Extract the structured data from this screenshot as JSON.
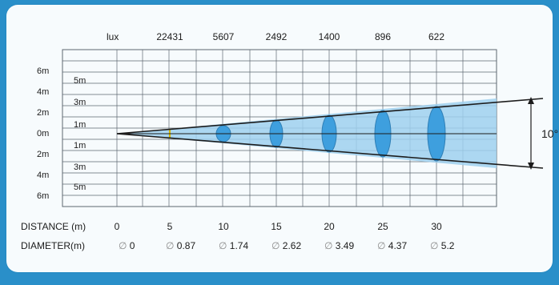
{
  "lux_label": "lux",
  "lux_values": [
    "22431",
    "5607",
    "2492",
    "1400",
    "896",
    "622"
  ],
  "height_labels_outer": [
    "6m",
    "4m",
    "2m",
    "0m",
    "2m",
    "4m",
    "6m"
  ],
  "height_labels_inner": [
    "5m",
    "3m",
    "1m",
    "1m",
    "3m",
    "5m"
  ],
  "distance_label": "DISTANCE (m)",
  "distance_values": [
    "0",
    "5",
    "10",
    "15",
    "20",
    "25",
    "30"
  ],
  "diameter_label": "DIAMETER(m)",
  "diameter_symbol": "∅",
  "diameter_values": [
    "0",
    "0.87",
    "1.74",
    "2.62",
    "3.49",
    "4.37",
    "5.2"
  ],
  "beam_angle": "10°",
  "colors": {
    "beam_fill": "#9fd0ee",
    "ellipse_fill": "#3e9fde",
    "grid": "#5d6770",
    "background_bar": "#2a8fc9"
  }
}
